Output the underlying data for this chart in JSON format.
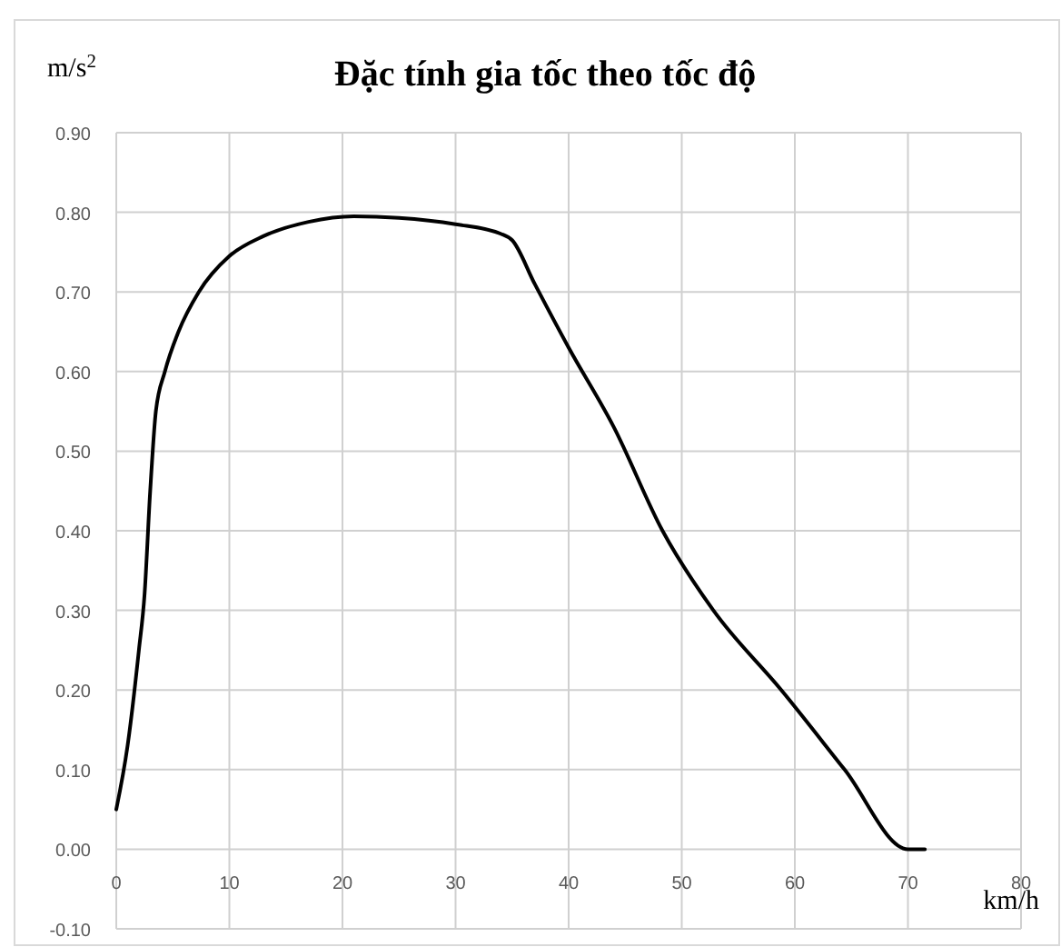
{
  "chart_data": {
    "type": "line",
    "title": "Đặc tính gia tốc theo tốc độ",
    "ylabel": "m/s$^{2}$",
    "xlabel": "km/h",
    "x": [
      0,
      1,
      2,
      2.5,
      3,
      3.5,
      4.3,
      5.5,
      7.3,
      10,
      13,
      17,
      21,
      25,
      30,
      34,
      35,
      37,
      40,
      44,
      48.3,
      52.8,
      58.8,
      64.4,
      70,
      71.5
    ],
    "series": [
      {
        "color": "#000000",
        "values": [
          0.05,
          0.13,
          0.25,
          0.32,
          0.45,
          0.55,
          0.6,
          0.65,
          0.7,
          0.745,
          0.77,
          0.788,
          0.795,
          0.793,
          0.785,
          0.773,
          0.765,
          0.71,
          0.63,
          0.53,
          0.4,
          0.3,
          0.2,
          0.1,
          0,
          0
        ]
      }
    ],
    "xlim": [
      0,
      80
    ],
    "xticks": [
      0,
      10,
      20,
      30,
      40,
      50,
      60,
      70,
      80
    ],
    "ylim": [
      -0.1,
      0.9
    ],
    "yticks": [
      {
        "value": -0.1,
        "label": "-0.10"
      },
      {
        "value": 0,
        "label": "0.00"
      },
      {
        "value": 0.1,
        "label": "0.10"
      },
      {
        "value": 0.2,
        "label": "0.20"
      },
      {
        "value": 0.3,
        "label": "0.30"
      },
      {
        "value": 0.4,
        "label": "0.40"
      },
      {
        "value": 0.5,
        "label": "0.50"
      },
      {
        "value": 0.6,
        "label": "0.60"
      },
      {
        "value": 0.7,
        "label": "0.70"
      },
      {
        "value": 0.8,
        "label": "0.80"
      },
      {
        "value": 0.9,
        "label": "0.90"
      }
    ],
    "grid": true,
    "marker": "none",
    "line_style": "solid"
  }
}
